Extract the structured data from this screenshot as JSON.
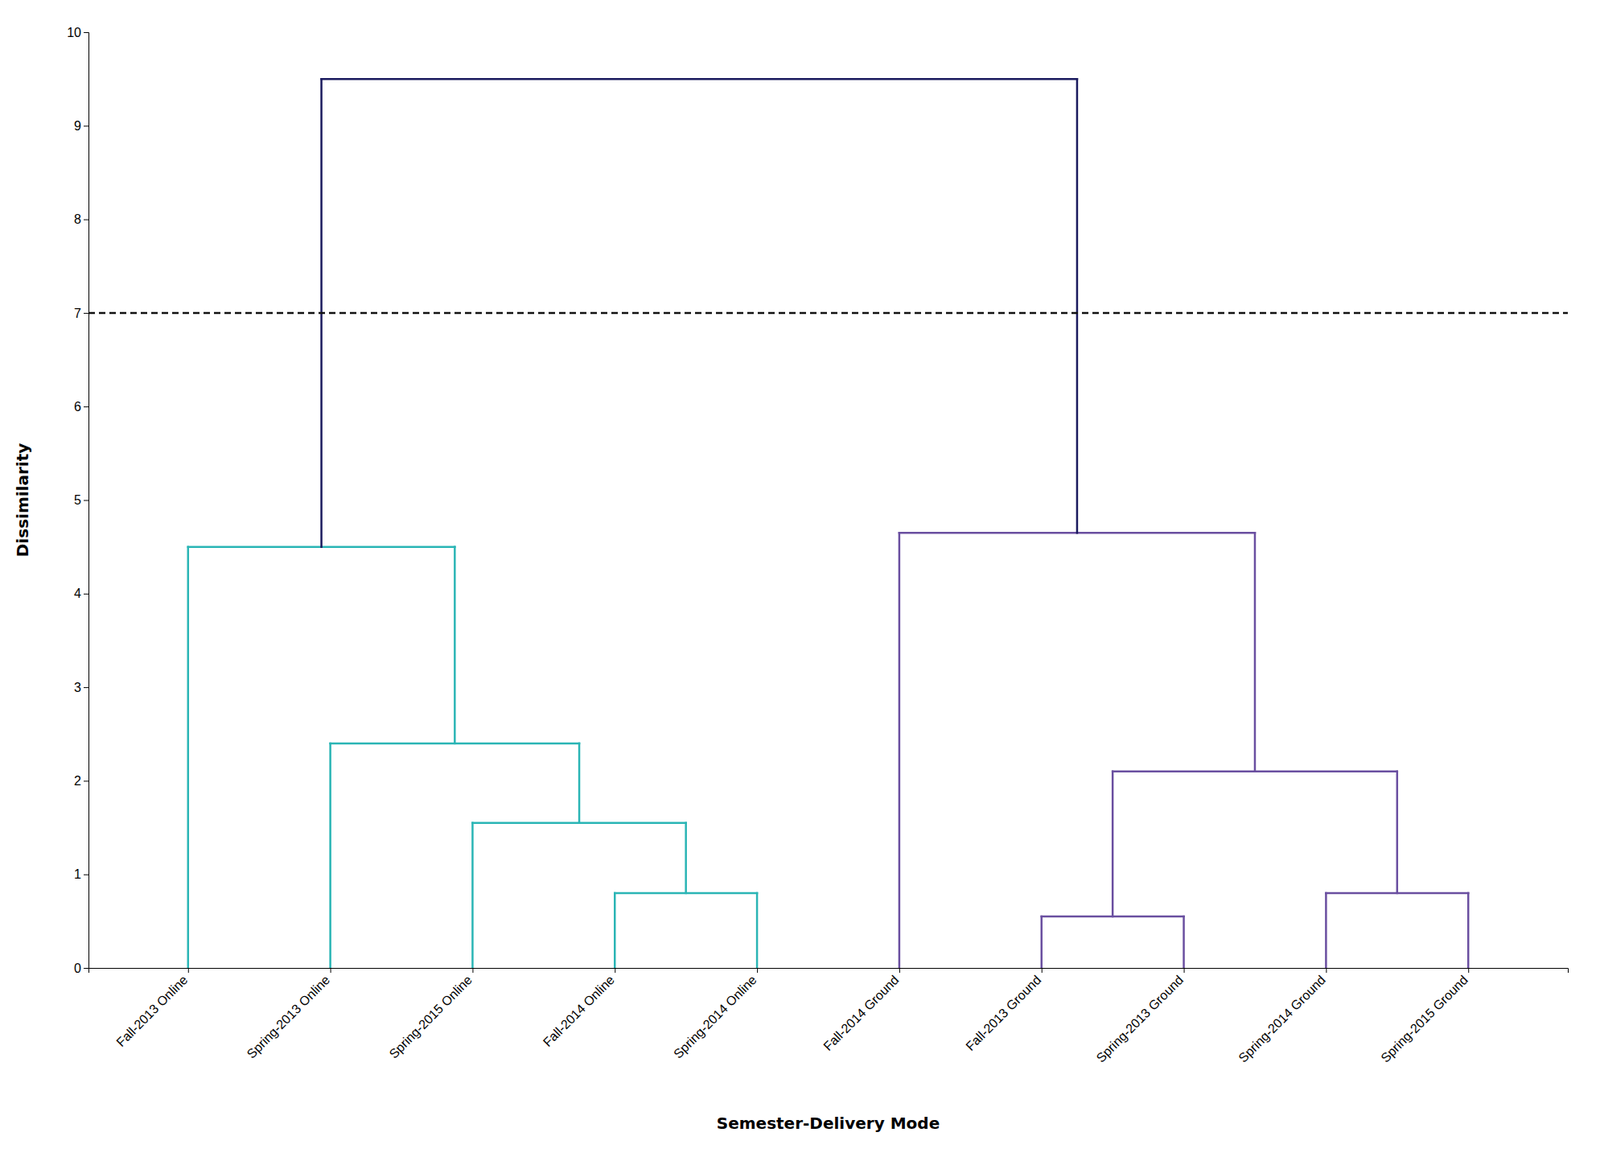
{
  "chart_data": {
    "type": "dendrogram",
    "xlabel": "Semester-Delivery Mode",
    "ylabel": "Dissimilarity",
    "categories": [
      "Fall-2013 Online",
      "Spring-2013 Online",
      "Spring-2015 Online",
      "Fall-2014 Online",
      "Spring-2014 Online",
      "Fall-2014 Ground",
      "Fall-2013 Ground",
      "Spring-2013 Ground",
      "Spring-2014 Ground",
      "Spring-2015 Ground"
    ],
    "ylim": [
      0,
      10
    ],
    "yticks": [
      0,
      1,
      2,
      3,
      4,
      5,
      6,
      7,
      8,
      9,
      10
    ],
    "grid": false,
    "cut_line": {
      "y": 7.0,
      "color": "#111111",
      "line_style": "dashed"
    },
    "tree": {
      "height": 9.5,
      "color": "#1a1a5e",
      "children": [
        {
          "height": 4.5,
          "color": "#2ab5b5",
          "children": [
            {
              "leaf": 0
            },
            {
              "height": 2.4,
              "color": "#2ab5b5",
              "children": [
                {
                  "leaf": 1
                },
                {
                  "height": 1.55,
                  "color": "#2ab5b5",
                  "children": [
                    {
                      "leaf": 2
                    },
                    {
                      "height": 0.8,
                      "color": "#2ab5b5",
                      "children": [
                        {
                          "leaf": 3
                        },
                        {
                          "leaf": 4
                        }
                      ]
                    }
                  ]
                }
              ]
            }
          ]
        },
        {
          "height": 4.65,
          "color": "#6a4fa0",
          "children": [
            {
              "leaf": 5
            },
            {
              "height": 2.1,
              "color": "#6a4fa0",
              "children": [
                {
                  "height": 0.55,
                  "color": "#6a4fa0",
                  "children": [
                    {
                      "leaf": 6
                    },
                    {
                      "leaf": 7
                    }
                  ]
                },
                {
                  "height": 0.8,
                  "color": "#6a4fa0",
                  "children": [
                    {
                      "leaf": 8
                    },
                    {
                      "leaf": 9
                    }
                  ]
                }
              ]
            }
          ]
        }
      ]
    }
  }
}
